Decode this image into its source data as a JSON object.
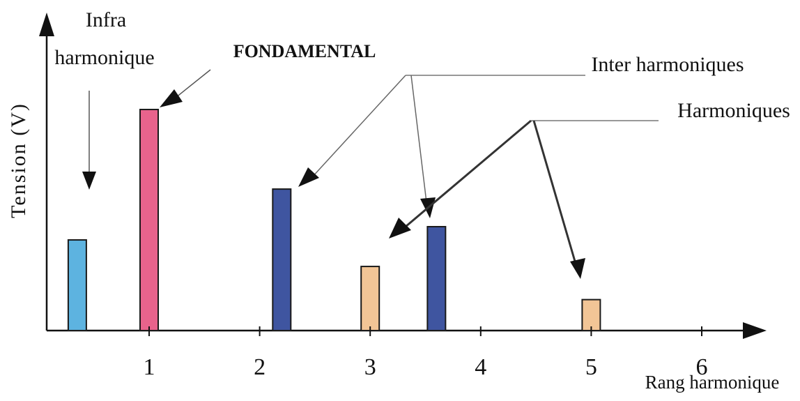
{
  "chart_data": {
    "type": "bar",
    "title": "",
    "ylabel": "Tension (V)",
    "xlabel": "Rang harmonique",
    "x_ticks": [
      "1",
      "2",
      "3",
      "4",
      "5",
      "6"
    ],
    "xlim": [
      0,
      6.6
    ],
    "ylim": [
      0,
      10.5
    ],
    "grid": false,
    "bars": [
      {
        "x": 0.35,
        "value": 4.1,
        "color": "#5db3e0",
        "kind": "infra"
      },
      {
        "x": 1.0,
        "value": 10.0,
        "color": "#e8638c",
        "kind": "fondamental"
      },
      {
        "x": 2.2,
        "value": 6.4,
        "color": "#3f55a0",
        "kind": "inter"
      },
      {
        "x": 3.0,
        "value": 2.9,
        "color": "#f2c596",
        "kind": "harmonique"
      },
      {
        "x": 3.6,
        "value": 4.7,
        "color": "#3f55a0",
        "kind": "inter"
      },
      {
        "x": 5.0,
        "value": 1.4,
        "color": "#f2c596",
        "kind": "harmonique"
      }
    ],
    "annotations": {
      "infra_line1": "Infra",
      "infra_line2": "harmonique",
      "fondamental": "FONDAMENTAL",
      "inter": "Inter harmoniques",
      "harmoniques": "Harmoniques"
    }
  }
}
